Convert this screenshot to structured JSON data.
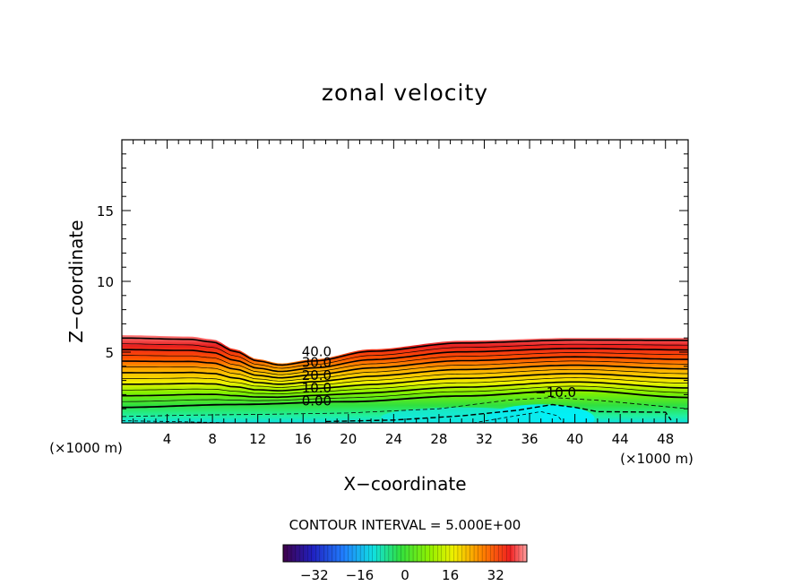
{
  "chart_data": {
    "type": "heatmap",
    "title": "zonal velocity",
    "xlabel": "X−coordinate",
    "ylabel": "Z−coordinate",
    "x_unit_left": "(×1000 m)",
    "x_unit_right": "(×1000 m)",
    "xlim": [
      0,
      50
    ],
    "ylim": [
      0,
      20
    ],
    "x_ticks": [
      "4",
      "8",
      "12",
      "16",
      "20",
      "24",
      "28",
      "32",
      "36",
      "40",
      "44",
      "48"
    ],
    "y_ticks": [
      "5",
      "10",
      "15"
    ],
    "contour_interval_text": "CONTOUR INTERVAL = 5.000E+00",
    "contour_labels": [
      "40.0",
      "30.0",
      "20.0",
      "10.0",
      "0.00",
      "−10.0"
    ],
    "colorbar": {
      "ticks": [
        "−32",
        "−16",
        "0",
        "16",
        "32"
      ],
      "range": [
        -43,
        43
      ]
    },
    "field": {
      "top_height_profile": [
        [
          0,
          6.2
        ],
        [
          6,
          6.1
        ],
        [
          8,
          5.9
        ],
        [
          10,
          5.2
        ],
        [
          12,
          4.5
        ],
        [
          14,
          4.2
        ],
        [
          17,
          4.5
        ],
        [
          22,
          5.2
        ],
        [
          30,
          5.8
        ],
        [
          40,
          6.0
        ],
        [
          50,
          6.0
        ]
      ],
      "zero_contour_height": [
        [
          0,
          1.1
        ],
        [
          10,
          1.3
        ],
        [
          20,
          1.5
        ],
        [
          30,
          1.9
        ],
        [
          40,
          2.3
        ],
        [
          50,
          1.8
        ]
      ],
      "min_value_region": "x 34-40, z 0-1.5, approx −10 to −15",
      "max_value_region": "near top of flow layer, approx 40-43"
    }
  }
}
